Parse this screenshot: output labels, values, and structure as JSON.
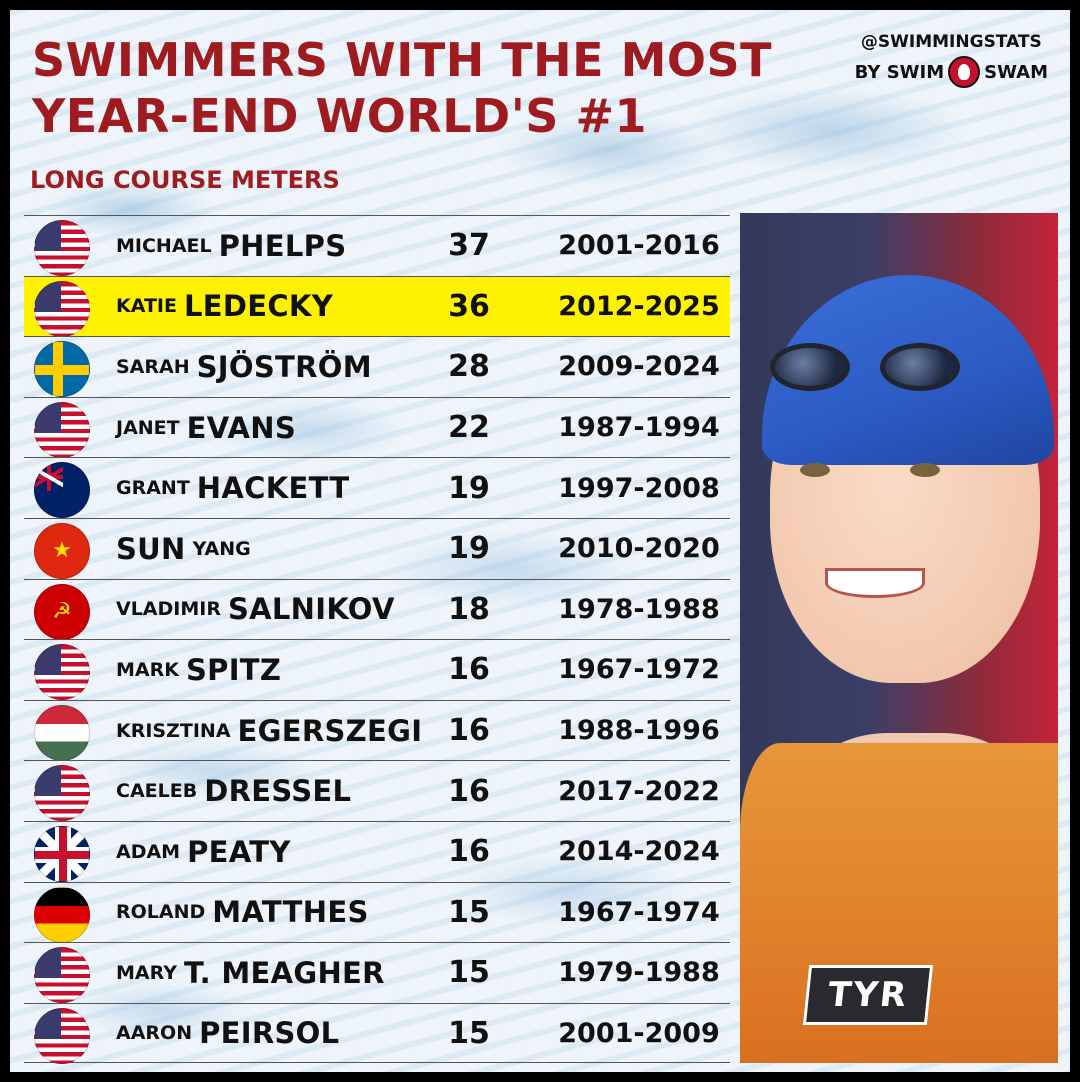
{
  "header": {
    "title_line1": "SWIMMERS WITH THE MOST",
    "title_line2": "YEAR-END WORLD'S #1",
    "subtitle": "LONG COURSE METERS"
  },
  "brand": {
    "handle": "@SWIMMINGSTATS",
    "by": "BY SWIM",
    "swam": "SWAM"
  },
  "rows": [
    {
      "first": "MICHAEL",
      "last": "PHELPS",
      "order": "first-last",
      "count": "37",
      "years": "2001-2016",
      "flag": "usa",
      "highlight": false
    },
    {
      "first": "KATIE",
      "last": "LEDECKY",
      "order": "first-last",
      "count": "36",
      "years": "2012-2025",
      "flag": "usa",
      "highlight": true
    },
    {
      "first": "SARAH",
      "last": "SJÖSTRÖM",
      "order": "first-last",
      "count": "28",
      "years": "2009-2024",
      "flag": "sweden",
      "highlight": false
    },
    {
      "first": "JANET",
      "last": "EVANS",
      "order": "first-last",
      "count": "22",
      "years": "1987-1994",
      "flag": "usa",
      "highlight": false
    },
    {
      "first": "GRANT",
      "last": "HACKETT",
      "order": "first-last",
      "count": "19",
      "years": "1997-2008",
      "flag": "australia",
      "highlight": false
    },
    {
      "first": "YANG",
      "last": "SUN",
      "order": "last-first",
      "count": "19",
      "years": "2010-2020",
      "flag": "china",
      "highlight": false
    },
    {
      "first": "VLADIMIR",
      "last": "SALNIKOV",
      "order": "first-last",
      "count": "18",
      "years": "1978-1988",
      "flag": "ussr",
      "highlight": false
    },
    {
      "first": "MARK",
      "last": "SPITZ",
      "order": "first-last",
      "count": "16",
      "years": "1967-1972",
      "flag": "usa",
      "highlight": false
    },
    {
      "first": "KRISZTINA",
      "last": "EGERSZEGI",
      "order": "first-last",
      "count": "16",
      "years": "1988-1996",
      "flag": "hungary",
      "highlight": false
    },
    {
      "first": "CAELEB",
      "last": "DRESSEL",
      "order": "first-last",
      "count": "16",
      "years": "2017-2022",
      "flag": "usa",
      "highlight": false
    },
    {
      "first": "ADAM",
      "last": "PEATY",
      "order": "first-last",
      "count": "16",
      "years": "2014-2024",
      "flag": "uk",
      "highlight": false
    },
    {
      "first": "ROLAND",
      "last": "MATTHES",
      "order": "first-last",
      "count": "15",
      "years": "1967-1974",
      "flag": "gdr",
      "highlight": false
    },
    {
      "first": "MARY",
      "last": "T. MEAGHER",
      "order": "first-last",
      "count": "15",
      "years": "1979-1988",
      "flag": "usa",
      "highlight": false
    },
    {
      "first": "AARON",
      "last": "PEIRSOL",
      "order": "first-last",
      "count": "15",
      "years": "2001-2009",
      "flag": "usa",
      "highlight": false
    }
  ],
  "photo": {
    "suit_logo": "TYR"
  },
  "colors": {
    "title_red": "#9e1b1f",
    "highlight_yellow": "#fff200"
  }
}
